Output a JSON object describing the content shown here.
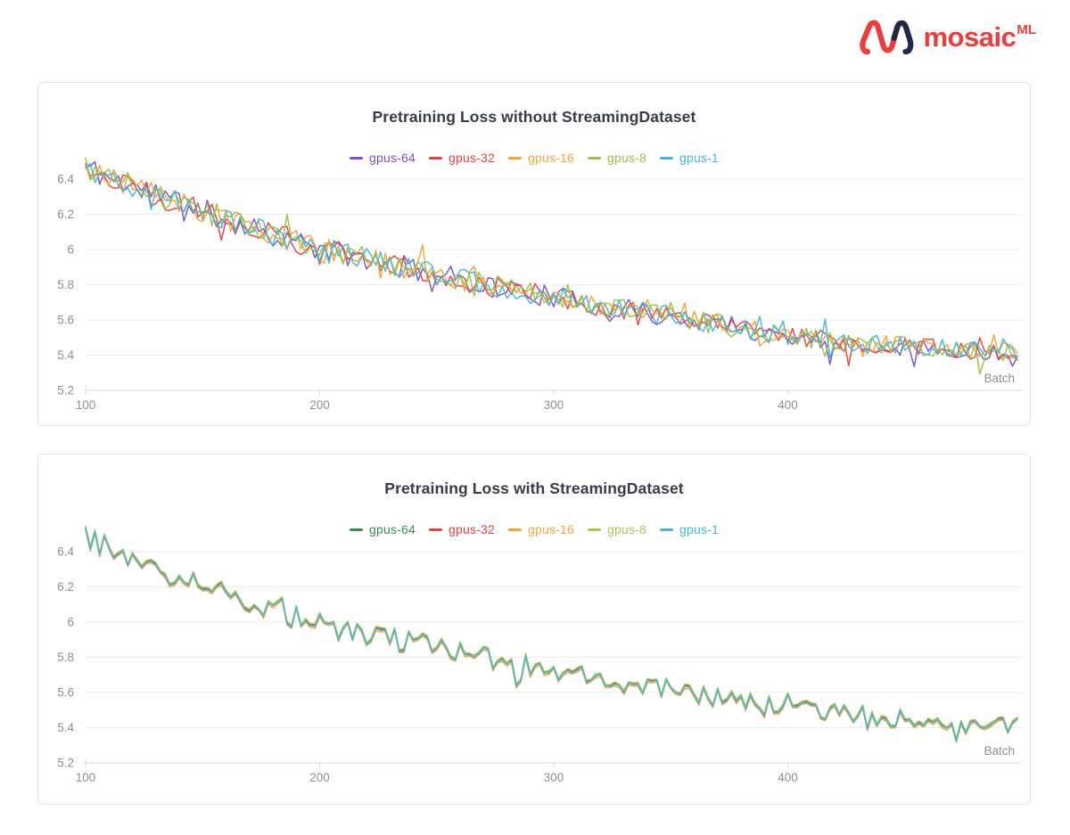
{
  "logo": {
    "text": "mosaic",
    "superscript": "ML",
    "brand_red": "#ee3c3c",
    "brand_navy": "#202a44"
  },
  "chart_data": [
    {
      "type": "line",
      "title": "Pretraining Loss without StreamingDataset",
      "xlabel": "Batch",
      "ylabel": "",
      "x_ticks": [
        100,
        200,
        300,
        400
      ],
      "y_ticks": [
        "5.2",
        "5.4",
        "5.6",
        "5.8",
        "6",
        "6.2",
        "6.4"
      ],
      "x_range": [
        100,
        498
      ],
      "x_step": 2,
      "ylim": [
        5.2,
        6.65
      ],
      "grid": "horizontal",
      "legend_position": "top-center",
      "trend": {
        "x": [
          100,
          110,
          125,
          150,
          175,
          200,
          225,
          250,
          275,
          300,
          325,
          350,
          375,
          400,
          425,
          450,
          475,
          498
        ],
        "y": [
          6.47,
          6.41,
          6.34,
          6.22,
          6.11,
          6.0,
          5.93,
          5.86,
          5.79,
          5.73,
          5.67,
          5.62,
          5.56,
          5.51,
          5.47,
          5.45,
          5.43,
          5.41
        ]
      },
      "noise": {
        "shared": false,
        "amplitude_start": 0.075,
        "amplitude_end": 0.05,
        "spike_chance": 0.07,
        "spike_extra": 0.06
      },
      "series": [
        {
          "name": "gpus-64",
          "color": "#7a52c5",
          "seed": 11,
          "offset": 0
        },
        {
          "name": "gpus-32",
          "color": "#e84141",
          "seed": 22,
          "offset": 0
        },
        {
          "name": "gpus-16",
          "color": "#f2a33c",
          "seed": 33,
          "offset": 0
        },
        {
          "name": "gpus-8",
          "color": "#9ebf45",
          "seed": 44,
          "offset": 0
        },
        {
          "name": "gpus-1",
          "color": "#45b8d4",
          "seed": 55,
          "offset": 0
        }
      ]
    },
    {
      "type": "line",
      "title": "Pretraining Loss with StreamingDataset",
      "xlabel": "Batch",
      "ylabel": "",
      "x_ticks": [
        100,
        200,
        300,
        400
      ],
      "y_ticks": [
        "5.2",
        "5.4",
        "5.6",
        "5.8",
        "6",
        "6.2",
        "6.4"
      ],
      "x_range": [
        100,
        498
      ],
      "x_step": 2,
      "ylim": [
        5.2,
        6.65
      ],
      "grid": "horizontal",
      "legend_position": "top-center",
      "trend": {
        "x": [
          100,
          110,
          125,
          150,
          175,
          200,
          225,
          250,
          275,
          300,
          325,
          350,
          375,
          400,
          425,
          450,
          475,
          498
        ],
        "y": [
          6.48,
          6.42,
          6.33,
          6.21,
          6.1,
          6.0,
          5.92,
          5.85,
          5.78,
          5.72,
          5.66,
          5.61,
          5.55,
          5.5,
          5.47,
          5.44,
          5.42,
          5.4
        ]
      },
      "noise": {
        "shared": true,
        "chart_seed": 77,
        "amplitude_start": 0.07,
        "amplitude_end": 0.055,
        "spike_chance": 0.09,
        "spike_extra": 0.06
      },
      "series": [
        {
          "name": "gpus-64",
          "color": "#3b8a57",
          "seed": 101,
          "offset": 0.012
        },
        {
          "name": "gpus-32",
          "color": "#e84141",
          "seed": 102,
          "offset": 0.006
        },
        {
          "name": "gpus-16",
          "color": "#f2a33c",
          "seed": 103,
          "offset": -0.012
        },
        {
          "name": "gpus-8",
          "color": "#a6c95a",
          "seed": 104,
          "offset": 0.016
        },
        {
          "name": "gpus-1",
          "color": "#45b8d4",
          "seed": 105,
          "offset": 0
        }
      ]
    }
  ],
  "style": {
    "grid_color": "#ededed",
    "axis_color": "#d8d8d8",
    "tick_label_color": "#8f8f8f",
    "xlabel_color": "#8f8f8f"
  }
}
